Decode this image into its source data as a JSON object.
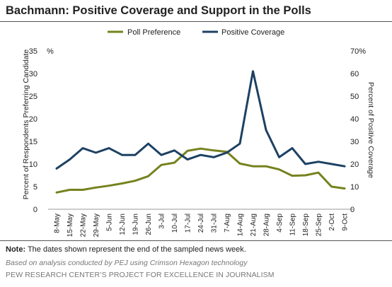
{
  "title": "Bachmann: Positive Coverage and Support in the Polls",
  "colors": {
    "poll_preference": "#76821e",
    "positive_coverage": "#1d4163",
    "axis": "#999999",
    "text": "#222222"
  },
  "chart_data": {
    "type": "line",
    "categories": [
      "8-May",
      "15-May",
      "22-May",
      "29-May",
      "5-Jun",
      "12-Jun",
      "19-Jun",
      "26-Jun",
      "3-Jul",
      "10-Jul",
      "17-Jul",
      "24-Jul",
      "31-Jul",
      "7-Aug",
      "14-Aug",
      "21-Aug",
      "28-Aug",
      "4-Sep",
      "11-Sep",
      "18-Sep",
      "25-Sep",
      "2-Oct",
      "9-Oct"
    ],
    "series": [
      {
        "name": "Poll Preference",
        "axis": "left",
        "color": "#76821e",
        "values": [
          3.7,
          4.3,
          4.3,
          4.8,
          5.2,
          5.7,
          6.3,
          7.3,
          9.8,
          10.3,
          12.9,
          13.4,
          13.0,
          12.7,
          10.1,
          9.5,
          9.5,
          8.8,
          7.4,
          7.5,
          8.1,
          5.0,
          4.6
        ]
      },
      {
        "name": "Positive Coverage",
        "axis": "right",
        "color": "#1d4163",
        "values": [
          18,
          22,
          27,
          25,
          27,
          24,
          24,
          29,
          24,
          26,
          22,
          24,
          23,
          25,
          29,
          61,
          35,
          23,
          27,
          20,
          21,
          20,
          19
        ]
      }
    ],
    "ylabel_left": "Percent of Respondents Preferring Candidate",
    "ylabel_right": "Percent of Positive Coverage",
    "ylim_left": [
      0,
      35
    ],
    "ylim_right": [
      0,
      70
    ],
    "yticks_left": [
      "0",
      "5",
      "10",
      "15",
      "20",
      "25",
      "30",
      "35"
    ],
    "yticks_right": [
      "0",
      "10",
      "20",
      "30",
      "40",
      "50",
      "60",
      "70%"
    ],
    "left_unit_label": "%",
    "grid": false,
    "legend_position": "top-center"
  },
  "note": {
    "label": "Note:",
    "text": " The dates shown represent the end of the sampled news week."
  },
  "credit": "Based on analysis conducted by PEJ using Crimson Hexagon technology",
  "source": "PEW RESEARCH CENTER’S PROJECT FOR EXCELLENCE IN JOURNALISM"
}
